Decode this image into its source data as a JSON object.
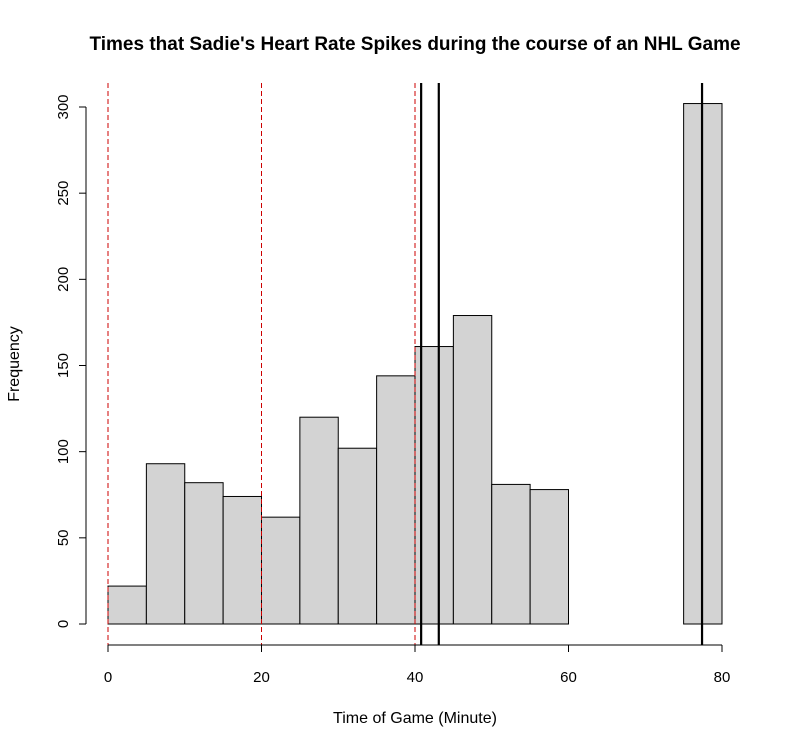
{
  "chart_data": {
    "type": "bar",
    "title": "Times that Sadie's Heart Rate Spikes during the course of an NHL Game",
    "xlabel": "Time of Game (Minute)",
    "ylabel": "Frequency",
    "xlim": [
      0,
      80
    ],
    "ylim": [
      0,
      300
    ],
    "x_ticks": [
      "0",
      "20",
      "40",
      "60",
      "80"
    ],
    "y_ticks": [
      "0",
      "50",
      "100",
      "150",
      "200",
      "250",
      "300"
    ],
    "bin_edges": [
      0,
      5,
      10,
      15,
      20,
      25,
      30,
      35,
      40,
      45,
      50,
      55,
      60,
      65,
      70,
      75,
      80
    ],
    "values": [
      22,
      93,
      82,
      74,
      62,
      120,
      102,
      144,
      161,
      179,
      81,
      78,
      0,
      0,
      0,
      302
    ],
    "bar_color": "#d3d3d3",
    "reference_lines": [
      {
        "x": 0,
        "style": "dashed",
        "color": "#cc0000"
      },
      {
        "x": 20,
        "style": "dashed",
        "color": "#cc0000"
      },
      {
        "x": 40,
        "style": "dashed",
        "color": "#cc0000"
      },
      {
        "x": 40.8,
        "style": "solid",
        "color": "#000000"
      },
      {
        "x": 43.1,
        "style": "solid",
        "color": "#000000"
      },
      {
        "x": 77.4,
        "style": "solid",
        "color": "#000000"
      }
    ],
    "grid": false,
    "legend": "none"
  }
}
